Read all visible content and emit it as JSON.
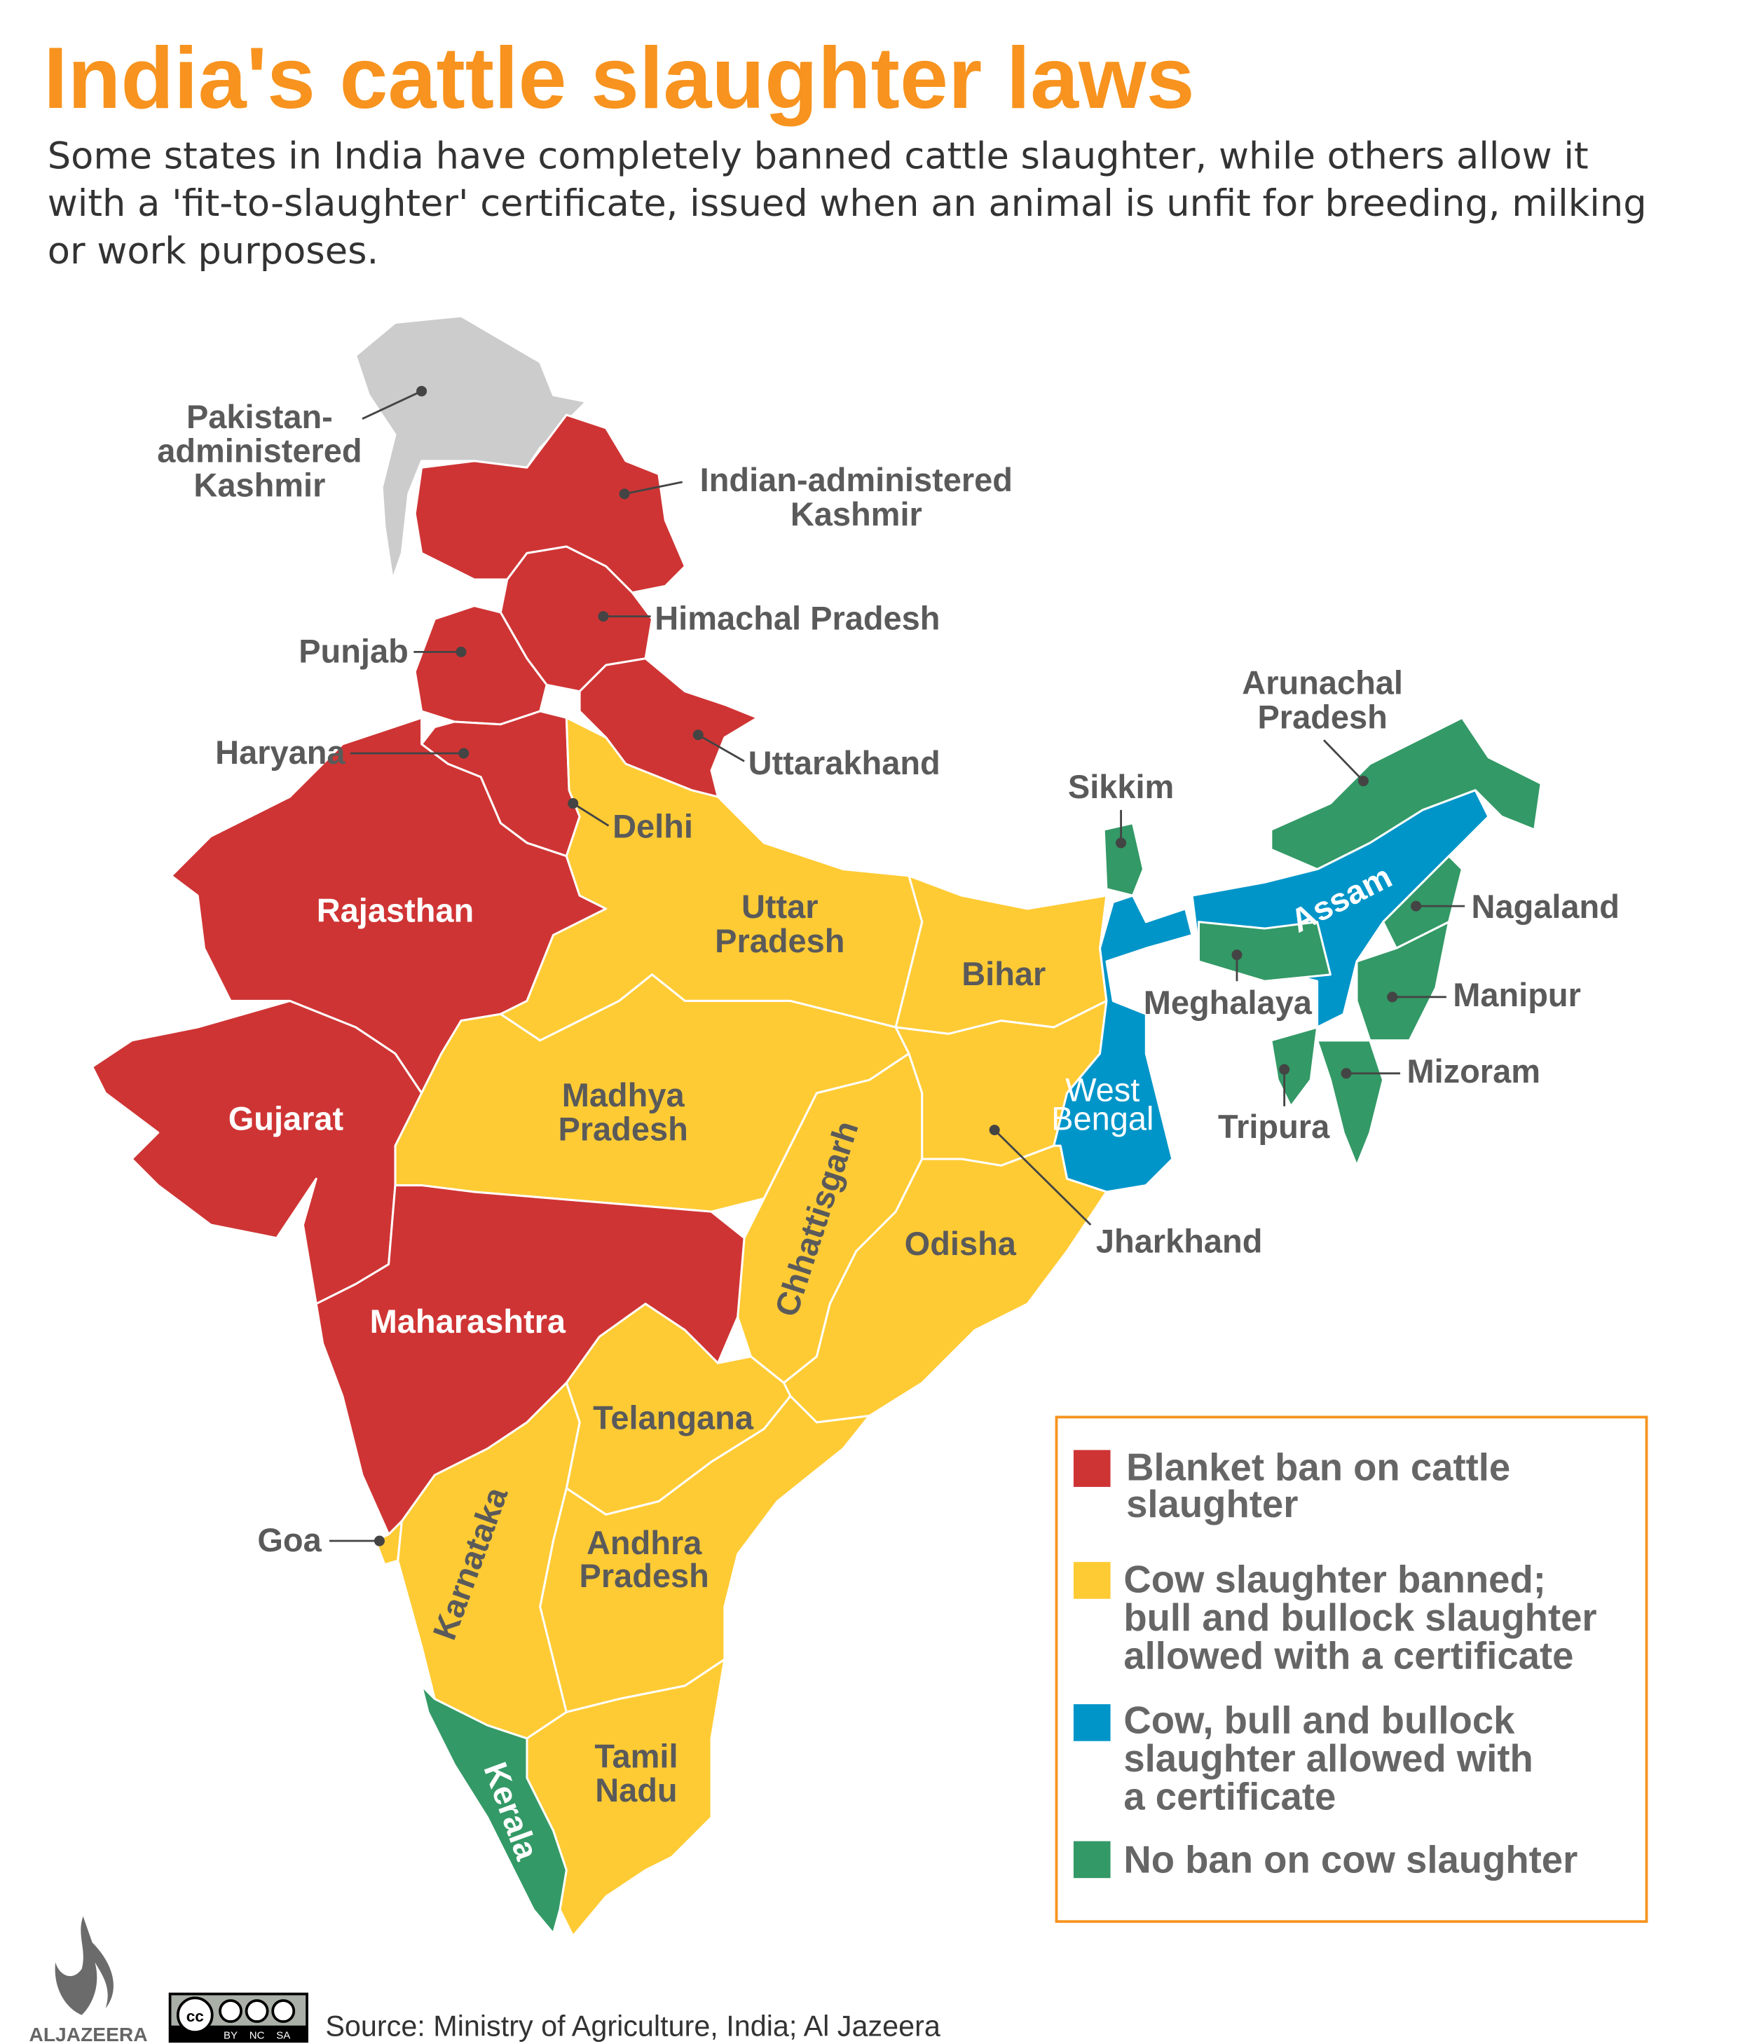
{
  "title": "India's cattle slaughter laws",
  "subtitle": [
    "Some states in India have completely banned cattle slaughter, while others allow it",
    "with a 'fit-to-slaughter' certificate, issued when an animal is unfit for breeding, milking",
    "or work purposes."
  ],
  "colors": {
    "blanket_ban": "#CF3434",
    "cow_banned": "#FFCB34",
    "certificate": "#0095C9",
    "no_ban": "#339966",
    "disputed": "#CCCCCC",
    "title": "#F7931E"
  },
  "labels": {
    "pok": [
      "Pakistan-",
      "administered",
      "Kashmir"
    ],
    "iak": [
      "Indian-administered",
      "Kashmir"
    ],
    "himachal": "Himachal Pradesh",
    "punjab": "Punjab",
    "haryana": "Haryana",
    "uttarakhand": "Uttarakhand",
    "delhi": "Delhi",
    "rajasthan": "Rajasthan",
    "up": [
      "Uttar",
      "Pradesh"
    ],
    "bihar": "Bihar",
    "sikkim": "Sikkim",
    "arunachal": [
      "Arunachal",
      "Pradesh"
    ],
    "assam": "Assam",
    "nagaland": "Nagaland",
    "meghalaya": "Meghalaya",
    "manipur": "Manipur",
    "mizoram": "Mizoram",
    "tripura": "Tripura",
    "westbengal": [
      "West",
      "Bengal"
    ],
    "gujarat": "Gujarat",
    "mp": [
      "Madhya",
      "Pradesh"
    ],
    "chhattisgarh": "Chhattisgarh",
    "jharkhand": "Jharkhand",
    "odisha": "Odisha",
    "maharashtra": "Maharashtra",
    "telangana": "Telangana",
    "goa": "Goa",
    "karnataka": "Karnataka",
    "ap": [
      "Andhra",
      "Pradesh"
    ],
    "tn": [
      "Tamil",
      "Nadu"
    ],
    "kerala": "Kerala"
  },
  "legend": [
    {
      "lines": [
        "Blanket ban on cattle",
        "slaughter"
      ],
      "color": "#CF3434"
    },
    {
      "lines": [
        "Cow slaughter banned;",
        "bull and bullock slaughter",
        "allowed with a certificate"
      ],
      "color": "#FFCB34"
    },
    {
      "lines": [
        "Cow, bull and bullock",
        "slaughter allowed with",
        "a certificate"
      ],
      "color": "#0095C9"
    },
    {
      "lines": [
        "No ban on cow slaughter"
      ],
      "color": "#339966"
    }
  ],
  "footer": {
    "logo": "ALJAZEERA",
    "license": [
      "BY",
      "NC",
      "SA"
    ],
    "source": "Source: Ministry of Agriculture, India; Al Jazeera"
  }
}
